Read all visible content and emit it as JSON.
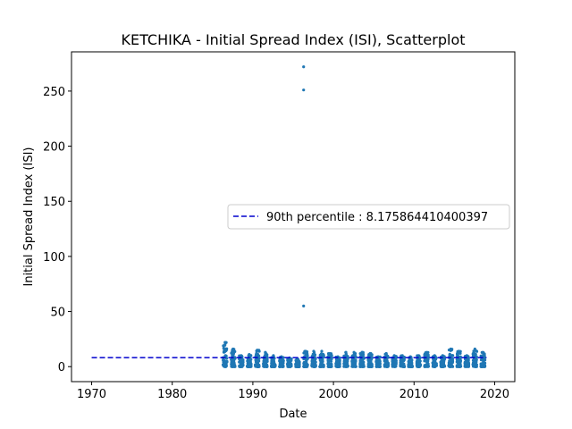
{
  "chart_data": {
    "type": "scatter",
    "title": "KETCHIKA - Initial Spread Index (ISI), Scatterplot",
    "xlabel": "Date",
    "ylabel": "Initial Spread Index (ISI)",
    "xlim": [
      1967.5,
      2022.5
    ],
    "ylim": [
      -13.6,
      285.6
    ],
    "x_ticks": [
      1970,
      1980,
      1990,
      2000,
      2010,
      2020
    ],
    "y_ticks": [
      0,
      50,
      100,
      150,
      200,
      250
    ],
    "grid": false,
    "legend_position": "center-right",
    "point_color": "#1f77b4",
    "reference_line": {
      "label": "90th percentile : 8.175864410400397",
      "value": 8.175864410400397,
      "x_range": [
        1970,
        2019
      ],
      "color": "#0000cd",
      "style": "dashed"
    },
    "series": [
      {
        "seasons": [
          1986,
          1987,
          1988,
          1989,
          1990,
          1991,
          1992,
          1993,
          1994,
          1995,
          1996,
          1997,
          1998,
          1999,
          2000,
          2001,
          2002,
          2003,
          2004,
          2005,
          2006,
          2007,
          2008,
          2009,
          2010,
          2011,
          2012,
          2013,
          2014,
          2015,
          2016,
          2017,
          2018
        ],
        "season_max": [
          22,
          16,
          10,
          11,
          15,
          13,
          10,
          9,
          8,
          7,
          14,
          14,
          14,
          12,
          9,
          13,
          13,
          13,
          12,
          9,
          12,
          10,
          10,
          9,
          10,
          13,
          10,
          10,
          16,
          14,
          10,
          16,
          13
        ],
        "outliers": [
          {
            "x": 1996.3,
            "y": 272
          },
          {
            "x": 1996.3,
            "y": 251
          },
          {
            "x": 1996.3,
            "y": 55
          }
        ]
      }
    ]
  }
}
